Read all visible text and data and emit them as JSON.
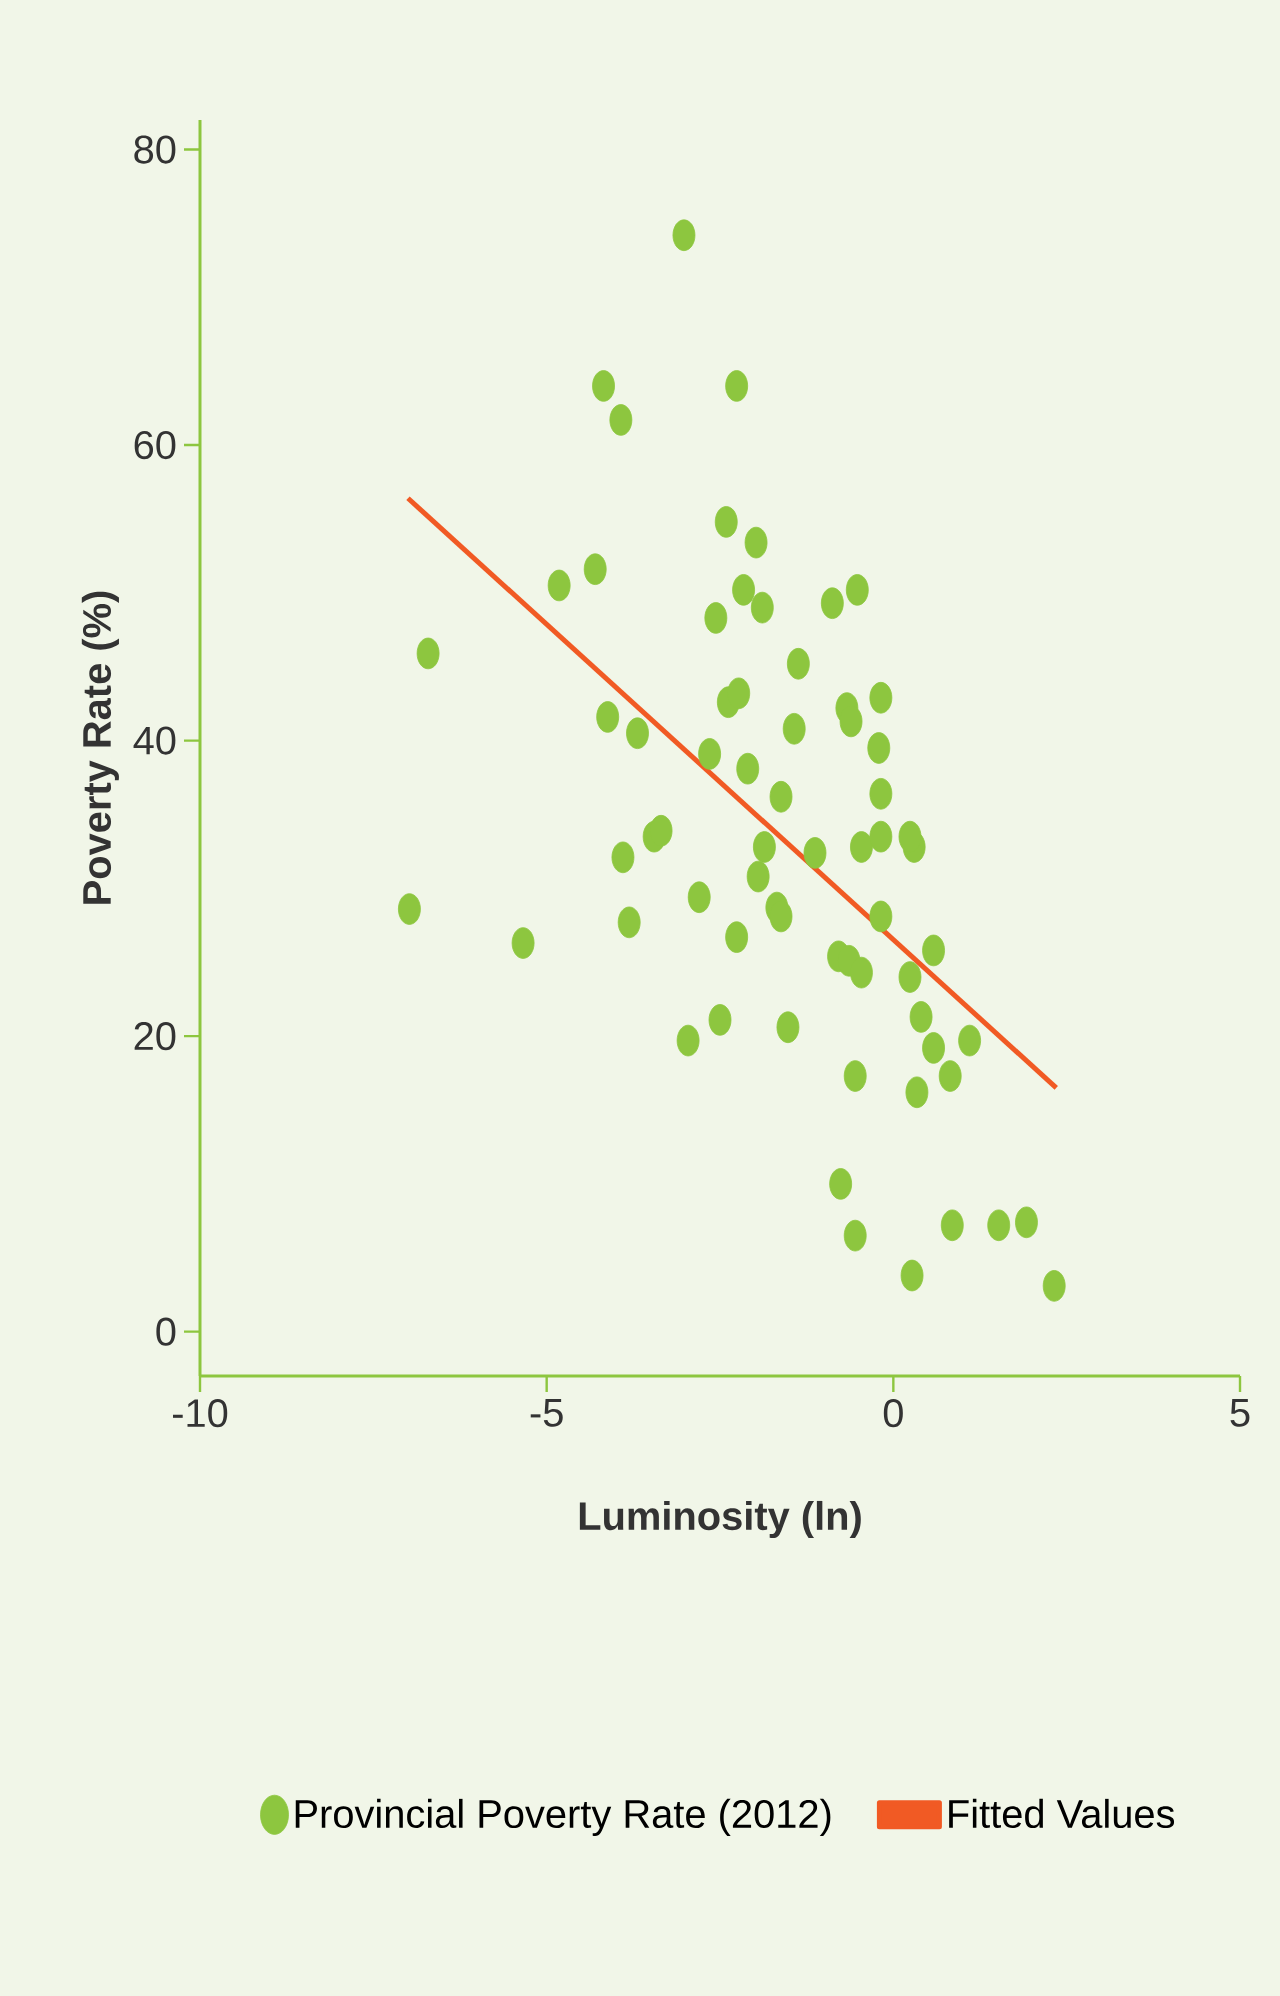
{
  "chart_data": {
    "type": "scatter",
    "xlabel": "Luminosity (ln)",
    "ylabel": "Poverty Rate (%)",
    "xlim": [
      -10,
      5
    ],
    "ylim": [
      -3,
      82
    ],
    "xticks": [
      -10,
      -5,
      0,
      5
    ],
    "yticks": [
      0,
      20,
      40,
      60,
      80
    ],
    "grid": false,
    "legend": "bottom",
    "series": [
      {
        "name": "Provincial Poverty Rate (2012)",
        "marker": "circle",
        "color": "#8dc63f",
        "x": [
          -3.02,
          -6.98,
          -6.71,
          -5.34,
          -4.82,
          -4.3,
          -4.18,
          -3.93,
          -4.12,
          -3.9,
          -3.81,
          -3.69,
          -3.45,
          -3.35,
          -2.96,
          -2.8,
          -2.65,
          -2.56,
          -2.5,
          -2.41,
          -2.38,
          -2.26,
          -2.23,
          -2.16,
          -2.26,
          -2.1,
          -1.98,
          -1.89,
          -1.86,
          -1.95,
          -1.62,
          -1.68,
          -1.62,
          -1.52,
          -1.37,
          -1.43,
          -1.13,
          -0.88,
          -0.79,
          -0.76,
          -0.67,
          -0.64,
          -0.55,
          -0.52,
          -0.46,
          -0.61,
          -0.55,
          -0.46,
          -0.18,
          -0.21,
          -0.18,
          -0.18,
          -0.18,
          0.24,
          0.3,
          0.24,
          0.27,
          0.34,
          0.4,
          0.58,
          0.58,
          0.82,
          0.85,
          1.1,
          1.52,
          1.92,
          2.32
        ],
        "values": [
          74.2,
          28.6,
          45.9,
          26.3,
          50.5,
          51.6,
          64,
          61.7,
          41.6,
          32.1,
          27.7,
          40.5,
          33.5,
          33.9,
          19.7,
          29.4,
          39.1,
          48.3,
          21.1,
          54.8,
          42.6,
          64,
          43.2,
          50.2,
          26.7,
          38.1,
          53.4,
          49,
          32.8,
          30.8,
          36.2,
          28.7,
          28.1,
          20.6,
          45.2,
          40.8,
          32.4,
          49.3,
          25.4,
          10,
          42.2,
          25.1,
          17.3,
          50.2,
          24.3,
          41.3,
          6.5,
          32.8,
          42.9,
          39.5,
          36.4,
          33.5,
          28.1,
          24,
          32.8,
          33.5,
          3.8,
          16.2,
          21.3,
          19.2,
          25.8,
          17.3,
          7.2,
          19.7,
          7.2,
          7.4,
          3.1
        ]
      },
      {
        "name": "Fitted Values",
        "type": "line",
        "marker": "none",
        "color": "#f15a24",
        "x": [
          -7,
          2.35
        ],
        "values": [
          56.4,
          16.5
        ]
      }
    ]
  }
}
